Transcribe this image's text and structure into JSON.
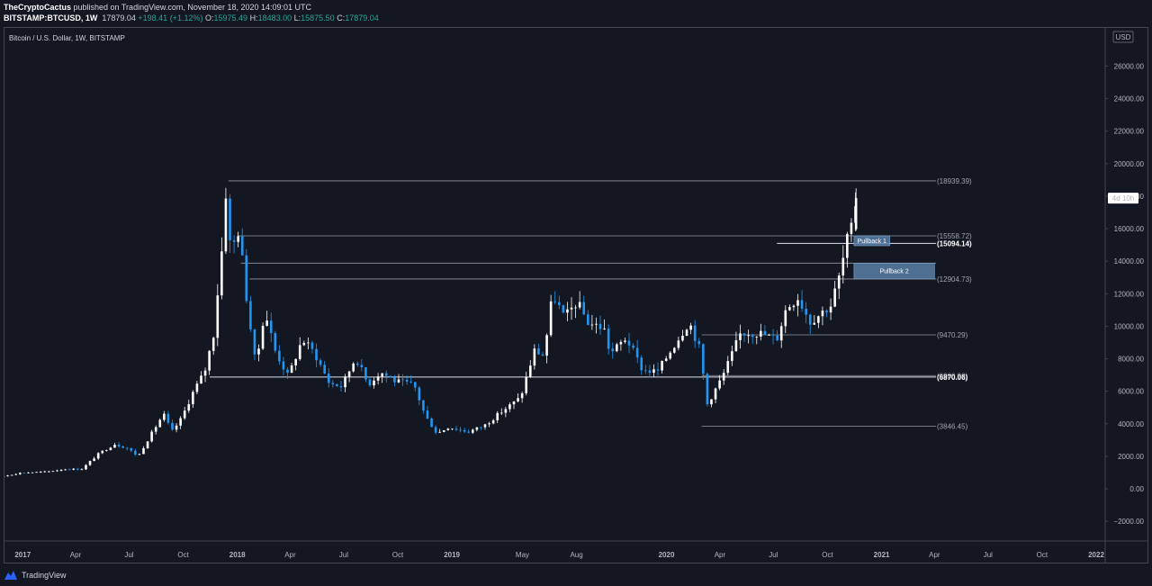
{
  "header": {
    "author": "TheCryptoCactus",
    "published": " published on TradingView.com, November 18, 2020 14:09:01 UTC",
    "symbol": "BITSTAMP:BTCUSD, 1W",
    "price": "17879.04",
    "change": "+198.41 (+1.12%)",
    "o_label": "O:",
    "o_val": "15975.49",
    "h_label": "H:",
    "h_val": "18483.00",
    "l_label": "L:",
    "l_val": "15875.50",
    "c_label": "C:",
    "c_val": "17879.04"
  },
  "chart_data": {
    "type": "candlestick",
    "title": "Bitcoin / U.S. Dollar, 1W, BITSTAMP",
    "currency": "USD",
    "countdown": "4d 10h",
    "ylim": [
      -3000,
      28000
    ],
    "y_ticks": [
      -2000,
      0,
      2000,
      4000,
      6000,
      8000,
      10000,
      12000,
      14000,
      16000,
      18000,
      20000,
      22000,
      24000,
      26000
    ],
    "y_tick_labels": [
      "−2000.00",
      "0.00",
      "2000.00",
      "4000.00",
      "6000.00",
      "8000.00",
      "10000.00",
      "12000.00",
      "14000.00",
      "16000.00",
      "18000.00",
      "20000.00",
      "22000.00",
      "24000.00",
      "26000.00"
    ],
    "x_labels": [
      "2017",
      "Apr",
      "Jul",
      "Oct",
      "2018",
      "Apr",
      "Jul",
      "Oct",
      "2019",
      "May",
      "Aug",
      "2020",
      "Apr",
      "Jul",
      "Oct",
      "2021",
      "Apr",
      "Jul",
      "Oct",
      "2022"
    ],
    "x_label_dates": [
      "2017-01-01",
      "2017-04-01",
      "2017-07-01",
      "2017-10-01",
      "2018-01-01",
      "2018-04-01",
      "2018-07-01",
      "2018-10-01",
      "2019-01-01",
      "2019-05-01",
      "2019-08-01",
      "2020-01-01",
      "2020-04-01",
      "2020-07-01",
      "2020-10-01",
      "2021-01-01",
      "2021-04-01",
      "2021-07-01",
      "2021-10-01",
      "2022-01-01"
    ],
    "bold_x_labels": [
      "2017",
      "2018",
      "2019",
      "2020",
      "2021",
      "2022"
    ],
    "price_waypoints": [
      [
        "2016-10-01",
        620
      ],
      [
        "2016-12-01",
        760
      ],
      [
        "2017-01-01",
        980
      ],
      [
        "2017-02-15",
        1050
      ],
      [
        "2017-03-15",
        1200
      ],
      [
        "2017-04-15",
        1220
      ],
      [
        "2017-05-15",
        2200
      ],
      [
        "2017-06-10",
        2750
      ],
      [
        "2017-07-01",
        2500
      ],
      [
        "2017-07-20",
        2000
      ],
      [
        "2017-08-05",
        3000
      ],
      [
        "2017-09-01",
        4600
      ],
      [
        "2017-09-15",
        3500
      ],
      [
        "2017-10-01",
        4300
      ],
      [
        "2017-10-22",
        6000
      ],
      [
        "2017-11-10",
        7200
      ],
      [
        "2017-11-25",
        9500
      ],
      [
        "2017-12-10",
        15000
      ],
      [
        "2017-12-17",
        18800
      ],
      [
        "2017-12-24",
        14500
      ],
      [
        "2018-01-07",
        16000
      ],
      [
        "2018-01-21",
        11500
      ],
      [
        "2018-02-05",
        7500
      ],
      [
        "2018-02-20",
        11000
      ],
      [
        "2018-03-10",
        8500
      ],
      [
        "2018-04-01",
        6900
      ],
      [
        "2018-04-25",
        9200
      ],
      [
        "2018-05-15",
        8400
      ],
      [
        "2018-06-10",
        6500
      ],
      [
        "2018-07-01",
        6300
      ],
      [
        "2018-07-25",
        8100
      ],
      [
        "2018-08-15",
        6400
      ],
      [
        "2018-09-05",
        7200
      ],
      [
        "2018-10-01",
        6600
      ],
      [
        "2018-11-01",
        6400
      ],
      [
        "2018-11-20",
        4500
      ],
      [
        "2018-12-10",
        3400
      ],
      [
        "2018-12-30",
        3800
      ],
      [
        "2019-02-01",
        3500
      ],
      [
        "2019-03-01",
        3900
      ],
      [
        "2019-04-01",
        4800
      ],
      [
        "2019-05-01",
        5600
      ],
      [
        "2019-05-25",
        8500
      ],
      [
        "2019-06-10",
        8200
      ],
      [
        "2019-06-25",
        12000
      ],
      [
        "2019-07-15",
        10500
      ],
      [
        "2019-08-05",
        11500
      ],
      [
        "2019-08-25",
        10200
      ],
      [
        "2019-09-20",
        9900
      ],
      [
        "2019-10-01",
        8300
      ],
      [
        "2019-10-28",
        9300
      ],
      [
        "2019-11-25",
        7300
      ],
      [
        "2019-12-20",
        7200
      ],
      [
        "2020-01-15",
        8700
      ],
      [
        "2020-02-12",
        10300
      ],
      [
        "2020-03-01",
        8600
      ],
      [
        "2020-03-14",
        5200
      ],
      [
        "2020-04-10",
        7000
      ],
      [
        "2020-05-10",
        9600
      ],
      [
        "2020-06-10",
        9600
      ],
      [
        "2020-07-10",
        9200
      ],
      [
        "2020-07-26",
        11100
      ],
      [
        "2020-08-15",
        11800
      ],
      [
        "2020-09-05",
        10300
      ],
      [
        "2020-10-10",
        11300
      ],
      [
        "2020-10-25",
        13100
      ],
      [
        "2020-11-08",
        15500
      ],
      [
        "2020-11-15",
        15975
      ],
      [
        "2020-11-22",
        17879
      ]
    ],
    "last_candle": {
      "o": 15975.49,
      "h": 18483.0,
      "l": 15875.5,
      "c": 17879.04
    },
    "levels": [
      {
        "value": 18939.39,
        "label": "(18939.39)",
        "start": "2017-12-17",
        "bold": false
      },
      {
        "value": 15558.72,
        "label": "(15558.72)",
        "start": "2018-01-01",
        "bold": false
      },
      {
        "value": 15094.14,
        "label": "(15094.14)",
        "start": "2020-07-07",
        "bold": true
      },
      {
        "value": 13880.0,
        "label": "",
        "start": "2018-01-07",
        "bold": false
      },
      {
        "value": 12904.73,
        "label": "(12904.73)",
        "start": "2018-01-22",
        "bold": false
      },
      {
        "value": 9470.29,
        "label": "(9470.29)",
        "start": "2020-03-01",
        "bold": false
      },
      {
        "value": 6960.98,
        "label": "(6960.98)",
        "start": "2020-03-01",
        "bold": false
      },
      {
        "value": 6870.06,
        "label": "(6870.06)",
        "start": "2017-11-15",
        "bold": true
      },
      {
        "value": 3846.45,
        "label": "(3846.45)",
        "start": "2020-03-01",
        "bold": false
      }
    ],
    "zones": [
      {
        "label": "Pullback 1",
        "top": 15558.72,
        "bottom": 14950,
        "start": "2020-11-15",
        "end": "2021-01-15"
      },
      {
        "label": "Pullback 2",
        "top": 13880,
        "bottom": 12904.73,
        "start": "2020-11-15",
        "end": "2021-04-01"
      }
    ],
    "grid": false,
    "legend": "none"
  },
  "footer": {
    "brand": "TradingView"
  }
}
